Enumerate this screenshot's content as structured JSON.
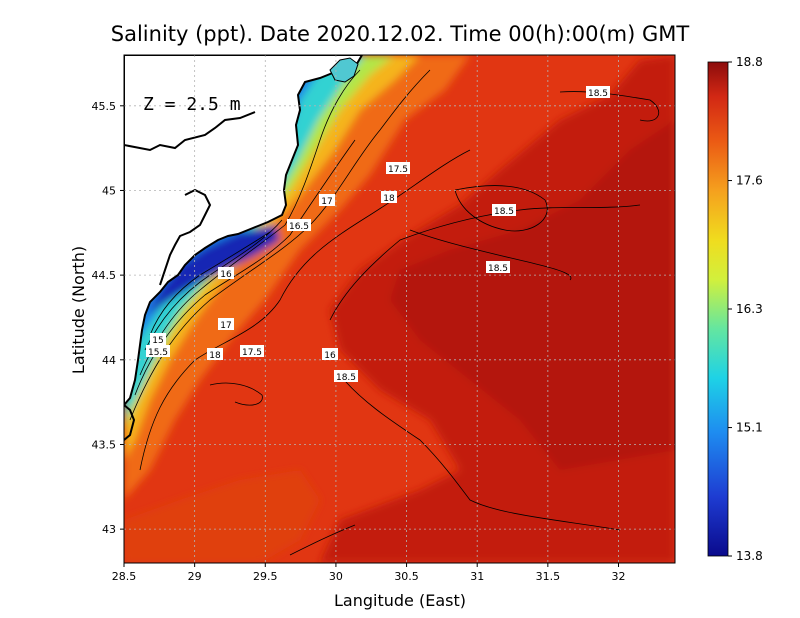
{
  "title": "Salinity (ppt). Date 2020.12.02. Time 00(h):00(m) GMT",
  "depth_label": "Z = 2.5 m",
  "x_axis": {
    "label": "Langitude (East)",
    "ticks": [
      "28.5",
      "29",
      "29.5",
      "30",
      "30.5",
      "31",
      "31.5",
      "32"
    ]
  },
  "y_axis": {
    "label": "Latitude (North)",
    "ticks": [
      "45.5",
      "45",
      "44.5",
      "44",
      "43.5",
      "43"
    ]
  },
  "colorbar": {
    "ticks": [
      "18.8",
      "17.6",
      "16.3",
      "15.1",
      "13.8"
    ],
    "min": 13.8,
    "max": 18.8
  },
  "contour_labels": [
    "18.5",
    "17.5",
    "18",
    "17",
    "18.5",
    "16.5",
    "18.5",
    "16",
    "17",
    "15",
    "17.5",
    "16",
    "15.5",
    "18",
    "18.5"
  ],
  "colors": {
    "land": "#ffffff",
    "sea_dominant": "#d42a0c",
    "coast": "#000000"
  },
  "chart_data": {
    "type": "heatmap",
    "variable": "Salinity (ppt)",
    "xlim": [
      28.5,
      32.4
    ],
    "ylim": [
      42.8,
      45.8
    ],
    "zlim": [
      13.8,
      18.8
    ],
    "grid": true,
    "contour_levels": [
      15,
      15.5,
      16,
      16.5,
      17,
      17.5,
      18,
      18.5
    ]
  }
}
